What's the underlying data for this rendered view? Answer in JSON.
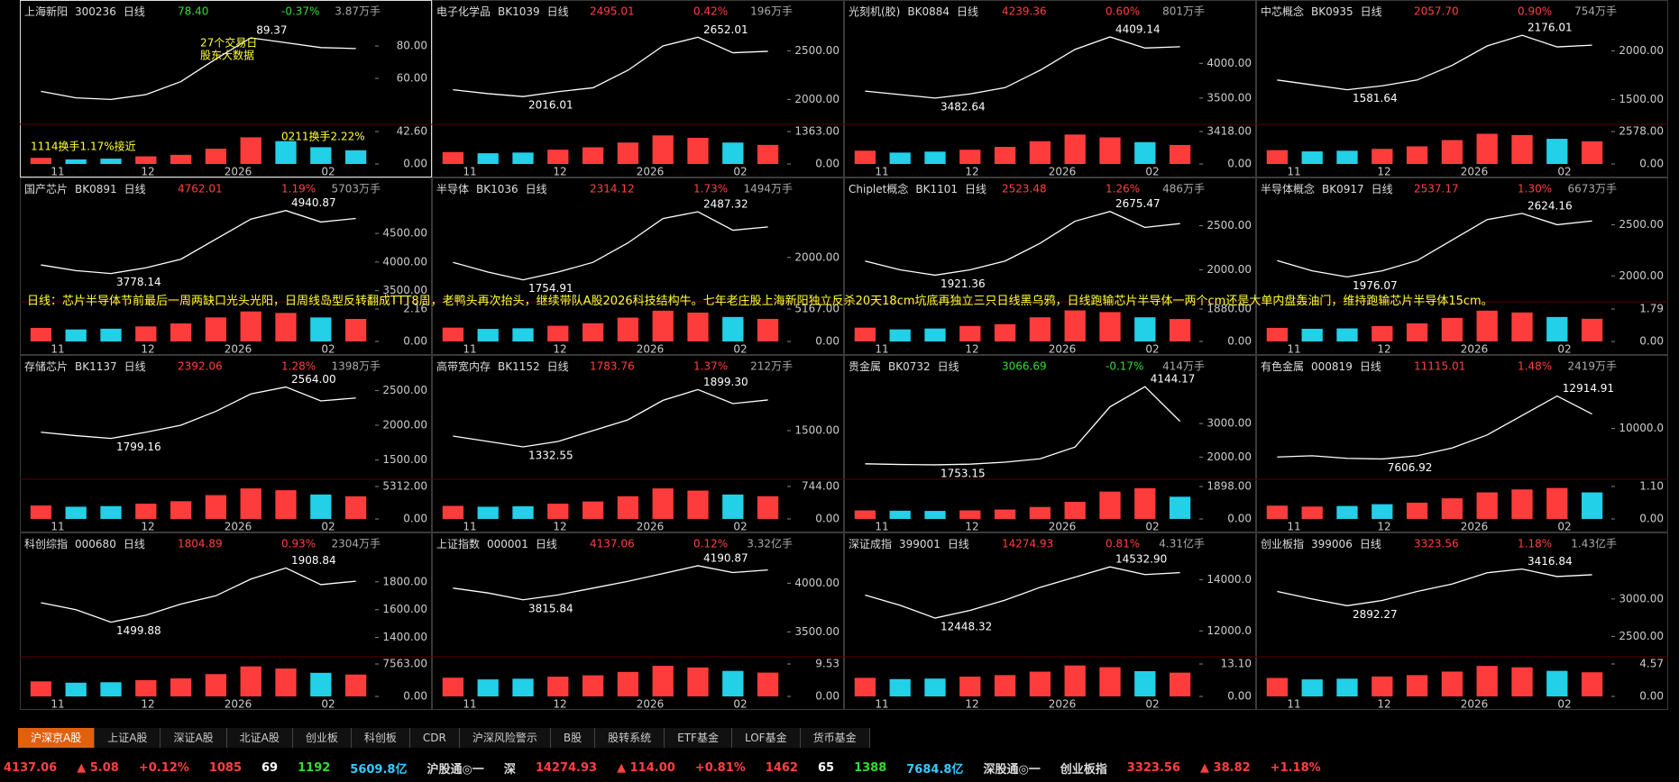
{
  "months": [
    "11",
    "12",
    "2026",
    "02"
  ],
  "annotation": "日线：芯片半导体节前最后一周两缺口光头光阳，日周线岛型反转翻成TTT8周，老鸭头再次抬头，继续带队A股2026科技结构牛。七年老庄股上海新阳独立反杀20天18cm坑底再独立三只日线黑乌鸦，日线跑输芯片半导体一两个cm还是大单内盘轰油门，维持跑输芯片半导体15cm。",
  "panels": [
    {
      "name": "上海新阳",
      "code": "300236",
      "period": "日线",
      "price": "78.40",
      "change": "-0.37%",
      "vol": "3.87万手",
      "high": "89.37",
      "low": "",
      "ylim": [
        35,
        95
      ],
      "yticks": [
        {
          "value": 80,
          "label": "80.00"
        },
        {
          "value": 60,
          "label": "60.00"
        }
      ],
      "vlim": [
        0,
        42.6
      ],
      "vticks": [
        {
          "value": 42.6,
          "label": "42.60"
        },
        {
          "value": 0,
          "label": "0.00"
        }
      ],
      "close": [
        52,
        48,
        47,
        50,
        58,
        72,
        85,
        82,
        79,
        78.4
      ],
      "volume": [
        8,
        6,
        7,
        10,
        12,
        20,
        35,
        30,
        22,
        18
      ],
      "notes": [
        "27个交易日",
        "股东大数据",
        "1114换手1.17%接近",
        "0211换手2.22%"
      ]
    },
    {
      "name": "电子化学品",
      "code": "BK1039",
      "period": "日线",
      "price": "2495.01",
      "change": "0.42%",
      "vol": "196万手",
      "high": "2652.01",
      "low": "2016.01",
      "ylim": [
        1800,
        2800
      ],
      "yticks": [
        {
          "value": 2500,
          "label": "2500.00"
        },
        {
          "value": 2000,
          "label": "2000.00"
        }
      ],
      "vlim": [
        0,
        1363
      ],
      "vticks": [
        {
          "value": 1363,
          "label": "1363.00"
        },
        {
          "value": 0,
          "label": "0.00"
        }
      ],
      "close": [
        2100,
        2060,
        2030,
        2080,
        2120,
        2300,
        2550,
        2640,
        2480,
        2495
      ],
      "volume": [
        500,
        450,
        480,
        600,
        700,
        900,
        1200,
        1100,
        900,
        800
      ]
    },
    {
      "name": "光刻机(胶)",
      "code": "BK0884",
      "period": "日线",
      "price": "4239.36",
      "change": "0.60%",
      "vol": "801万手",
      "high": "4409.14",
      "low": "3482.64",
      "ylim": [
        3200,
        4600
      ],
      "yticks": [
        {
          "value": 4000,
          "label": "4000.00"
        },
        {
          "value": 3500,
          "label": "3500.00"
        }
      ],
      "vlim": [
        0,
        3418
      ],
      "vticks": [
        {
          "value": 3418,
          "label": "3418.00"
        },
        {
          "value": 0,
          "label": "0.00"
        }
      ],
      "close": [
        3600,
        3550,
        3500,
        3560,
        3650,
        3900,
        4200,
        4380,
        4220,
        4239
      ],
      "volume": [
        1400,
        1200,
        1300,
        1500,
        1800,
        2400,
        3100,
        2800,
        2300,
        2000
      ]
    },
    {
      "name": "中芯概念",
      "code": "BK0935",
      "period": "日线",
      "price": "2057.70",
      "change": "0.90%",
      "vol": "754万手",
      "high": "2176.01",
      "low": "1581.64",
      "ylim": [
        1300,
        2300
      ],
      "yticks": [
        {
          "value": 2000,
          "label": "2000.00"
        },
        {
          "value": 1500,
          "label": "1500.00"
        }
      ],
      "vlim": [
        0,
        2578
      ],
      "vticks": [
        {
          "value": 2578,
          "label": "2578.00"
        },
        {
          "value": 0,
          "label": "0.00"
        }
      ],
      "close": [
        1700,
        1650,
        1600,
        1640,
        1700,
        1850,
        2050,
        2160,
        2040,
        2058
      ],
      "volume": [
        1100,
        1000,
        1050,
        1200,
        1400,
        1900,
        2400,
        2300,
        2000,
        1800
      ]
    },
    {
      "name": "国产芯片",
      "code": "BK0891",
      "period": "日线",
      "price": "4762.01",
      "change": "1.19%",
      "vol": "5703万手",
      "high": "4940.87",
      "low": "3778.14",
      "ylim": [
        3400,
        5100
      ],
      "yticks": [
        {
          "value": 4500,
          "label": "4500.00"
        },
        {
          "value": 4000,
          "label": "4000.00"
        },
        {
          "value": 3500,
          "label": "3500.00"
        }
      ],
      "vlim": [
        0,
        2.16
      ],
      "vticks": [
        {
          "value": 2.16,
          "label": "2.16"
        },
        {
          "value": 0,
          "label": "0.00"
        }
      ],
      "close": [
        3950,
        3850,
        3800,
        3900,
        4050,
        4400,
        4750,
        4900,
        4700,
        4762
      ],
      "volume": [
        0.9,
        0.8,
        0.85,
        1.0,
        1.2,
        1.6,
        2.0,
        1.9,
        1.6,
        1.5
      ]
    },
    {
      "name": "半导体",
      "code": "BK1036",
      "period": "日线",
      "price": "2314.12",
      "change": "1.73%",
      "vol": "1494万手",
      "high": "2487.32",
      "low": "1754.91",
      "ylim": [
        1600,
        2600
      ],
      "yticks": [
        {
          "value": 2000,
          "label": "2000.00"
        }
      ],
      "vlim": [
        0,
        5167
      ],
      "vticks": [
        {
          "value": 5167,
          "label": "5167.00"
        },
        {
          "value": 0,
          "label": "0.00"
        }
      ],
      "close": [
        1950,
        1850,
        1770,
        1850,
        1950,
        2150,
        2400,
        2470,
        2280,
        2314
      ],
      "volume": [
        2200,
        2000,
        2100,
        2500,
        2900,
        3800,
        4900,
        4600,
        3900,
        3600
      ]
    },
    {
      "name": "Chiplet概念",
      "code": "BK1101",
      "period": "日线",
      "price": "2523.48",
      "change": "1.26%",
      "vol": "486万手",
      "high": "2675.47",
      "low": "1921.36",
      "ylim": [
        1700,
        2800
      ],
      "yticks": [
        {
          "value": 2500,
          "label": "2500.00"
        },
        {
          "value": 2000,
          "label": "2000.00"
        }
      ],
      "vlim": [
        0,
        1880
      ],
      "vticks": [
        {
          "value": 1880,
          "label": "1880.00"
        },
        {
          "value": 0,
          "label": "0.00"
        }
      ],
      "close": [
        2100,
        2000,
        1940,
        2000,
        2100,
        2300,
        2550,
        2660,
        2480,
        2523
      ],
      "volume": [
        800,
        700,
        750,
        900,
        1000,
        1400,
        1800,
        1700,
        1400,
        1300
      ]
    },
    {
      "name": "半导体概念",
      "code": "BK0917",
      "period": "日线",
      "price": "2537.17",
      "change": "1.30%",
      "vol": "6673万手",
      "high": "2624.16",
      "low": "1976.07",
      "ylim": [
        1800,
        2750
      ],
      "yticks": [
        {
          "value": 2500,
          "label": "2500.00"
        },
        {
          "value": 2000,
          "label": "2000.00"
        }
      ],
      "vlim": [
        0,
        1.79
      ],
      "vticks": [
        {
          "value": 1.79,
          "label": "1.79"
        },
        {
          "value": 0,
          "label": "0.00"
        }
      ],
      "close": [
        2150,
        2050,
        1990,
        2050,
        2150,
        2350,
        2550,
        2610,
        2500,
        2537
      ],
      "volume": [
        0.75,
        0.7,
        0.72,
        0.85,
        1.0,
        1.3,
        1.7,
        1.6,
        1.35,
        1.25
      ]
    },
    {
      "name": "存储芯片",
      "code": "BK1137",
      "period": "日线",
      "price": "2392.06",
      "change": "1.28%",
      "vol": "1398万手",
      "high": "2564.00",
      "low": "1799.16",
      "ylim": [
        1300,
        2700
      ],
      "yticks": [
        {
          "value": 2500,
          "label": "2500.00"
        },
        {
          "value": 2000,
          "label": "2000.00"
        },
        {
          "value": 1500,
          "label": "1500.00"
        }
      ],
      "vlim": [
        0,
        5312
      ],
      "vticks": [
        {
          "value": 5312,
          "label": "5312.00"
        },
        {
          "value": 0,
          "label": "0.00"
        }
      ],
      "close": [
        1900,
        1850,
        1810,
        1900,
        2000,
        2200,
        2450,
        2550,
        2350,
        2392
      ],
      "volume": [
        2200,
        2000,
        2100,
        2500,
        2900,
        3900,
        5000,
        4700,
        4000,
        3700
      ]
    },
    {
      "name": "高带宽内存",
      "code": "BK1152",
      "period": "日线",
      "price": "1783.76",
      "change": "1.37%",
      "vol": "212万手",
      "high": "1899.30",
      "low": "1332.55",
      "ylim": [
        1100,
        2000
      ],
      "yticks": [
        {
          "value": 1500,
          "label": "1500.00"
        }
      ],
      "vlim": [
        0,
        744
      ],
      "vticks": [
        {
          "value": 744,
          "label": "744.00"
        },
        {
          "value": 0,
          "label": "0.00"
        }
      ],
      "close": [
        1450,
        1400,
        1350,
        1400,
        1500,
        1600,
        1780,
        1880,
        1750,
        1784
      ],
      "volume": [
        300,
        280,
        290,
        350,
        400,
        520,
        700,
        650,
        560,
        520
      ]
    },
    {
      "name": "贵金属",
      "code": "BK0732",
      "period": "日线",
      "price": "3066.69",
      "change": "-0.17%",
      "vol": "414万手",
      "high": "4144.17",
      "low": "1753.15",
      "ylim": [
        1500,
        4400
      ],
      "yticks": [
        {
          "value": 3000,
          "label": "3000.00"
        },
        {
          "value": 2000,
          "label": "2000.00"
        }
      ],
      "vlim": [
        0,
        1898
      ],
      "vticks": [
        {
          "value": 1898,
          "label": "1898.00"
        },
        {
          "value": 0,
          "label": "0.00"
        }
      ],
      "close": [
        1800,
        1780,
        1770,
        1790,
        1850,
        1950,
        2300,
        3500,
        4100,
        3067
      ],
      "volume": [
        500,
        480,
        470,
        500,
        550,
        700,
        1000,
        1600,
        1800,
        1300
      ]
    },
    {
      "name": "有色金属",
      "code": "000819",
      "period": "日线",
      "price": "11115.01",
      "change": "1.48%",
      "vol": "2419万手",
      "high": "12914.91",
      "low": "7606.92",
      "ylim": [
        6500,
        14000
      ],
      "yticks": [
        {
          "value": 10000,
          "label": "10000.0"
        }
      ],
      "vlim": [
        0,
        1.1
      ],
      "vticks": [
        {
          "value": 1.1,
          "label": "1.10"
        },
        {
          "value": 0,
          "label": "0.00"
        }
      ],
      "close": [
        7800,
        7900,
        7700,
        7650,
        7900,
        8500,
        9500,
        11000,
        12500,
        11115
      ],
      "volume": [
        0.45,
        0.42,
        0.44,
        0.5,
        0.55,
        0.7,
        0.9,
        1.0,
        1.05,
        0.9
      ]
    },
    {
      "name": "科创综指",
      "code": "000680",
      "period": "日线",
      "price": "1804.89",
      "change": "0.93%",
      "vol": "2304万手",
      "high": "1908.84",
      "low": "1499.88",
      "ylim": [
        1300,
        2000
      ],
      "yticks": [
        {
          "value": 1800,
          "label": "1800.00"
        },
        {
          "value": 1600,
          "label": "1600.00"
        },
        {
          "value": 1400,
          "label": "1400.00"
        }
      ],
      "vlim": [
        0,
        7563
      ],
      "vticks": [
        {
          "value": 7563,
          "label": "7563.00"
        },
        {
          "value": 0,
          "label": "0.00"
        }
      ],
      "close": [
        1650,
        1600,
        1510,
        1560,
        1640,
        1700,
        1820,
        1900,
        1780,
        1805
      ],
      "volume": [
        3500,
        3200,
        3300,
        3800,
        4200,
        5200,
        7000,
        6500,
        5500,
        5100
      ]
    },
    {
      "name": "上证指数",
      "code": "000001",
      "period": "日线",
      "price": "4137.06",
      "change": "0.12%",
      "vol": "3.32亿手",
      "high": "4190.87",
      "low": "3815.84",
      "ylim": [
        3300,
        4300
      ],
      "yticks": [
        {
          "value": 4000,
          "label": "4000.00"
        },
        {
          "value": 3500,
          "label": "3500.00"
        }
      ],
      "vlim": [
        0,
        9.53
      ],
      "vticks": [
        {
          "value": 9.53,
          "label": "9.53"
        },
        {
          "value": 0,
          "label": "0.00"
        }
      ],
      "close": [
        3950,
        3900,
        3830,
        3880,
        3950,
        4020,
        4100,
        4180,
        4110,
        4137
      ],
      "volume": [
        5.5,
        5.0,
        5.2,
        5.8,
        6.2,
        7.2,
        9.0,
        8.5,
        7.5,
        7.0
      ]
    },
    {
      "name": "深证成指",
      "code": "399001",
      "period": "日线",
      "price": "14274.93",
      "change": "0.81%",
      "vol": "4.31亿手",
      "high": "14532.90",
      "low": "12448.32",
      "ylim": [
        11200,
        15000
      ],
      "yticks": [
        {
          "value": 14000,
          "label": "14000.0"
        },
        {
          "value": 12000,
          "label": "12000.0"
        }
      ],
      "vlim": [
        0,
        13.1
      ],
      "vticks": [
        {
          "value": 13.1,
          "label": "13.10"
        },
        {
          "value": 0,
          "label": "0.00"
        }
      ],
      "close": [
        13400,
        13000,
        12500,
        12800,
        13200,
        13700,
        14100,
        14500,
        14200,
        14275
      ],
      "volume": [
        7.5,
        7.0,
        7.2,
        8.0,
        8.6,
        10.0,
        12.5,
        11.8,
        10.2,
        9.6
      ]
    },
    {
      "name": "创业板指",
      "code": "399006",
      "period": "日线",
      "price": "3323.56",
      "change": "1.18%",
      "vol": "1.43亿手",
      "high": "3416.84",
      "low": "2892.27",
      "ylim": [
        2300,
        3600
      ],
      "yticks": [
        {
          "value": 3000,
          "label": "3000.00"
        },
        {
          "value": 2500,
          "label": "2500.00"
        }
      ],
      "vlim": [
        0,
        4.57
      ],
      "vticks": [
        {
          "value": 4.57,
          "label": "4.57"
        },
        {
          "value": 0,
          "label": "0.00"
        }
      ],
      "close": [
        3100,
        3000,
        2910,
        2980,
        3100,
        3200,
        3350,
        3400,
        3300,
        3324
      ],
      "volume": [
        2.6,
        2.4,
        2.5,
        2.8,
        3.0,
        3.5,
        4.3,
        4.1,
        3.6,
        3.4
      ]
    }
  ],
  "tabs": [
    "沪深京A股",
    "上证A股",
    "深证A股",
    "北证A股",
    "创业板",
    "科创板",
    "CDR",
    "沪深风险警示",
    "B股",
    "股转系统",
    "ETF基金",
    "LOF基金",
    "货币基金"
  ],
  "status": [
    {
      "text": "4137.06",
      "color": "#ff4040"
    },
    {
      "text": "▲ 5.08",
      "color": "#ff4040"
    },
    {
      "text": "+0.12%",
      "color": "#ff4040"
    },
    {
      "text": "1085",
      "color": "#ff4040"
    },
    {
      "text": "69",
      "color": "#ffffff"
    },
    {
      "text": "1192",
      "color": "#33dd33"
    },
    {
      "text": "5609.8亿",
      "color": "#33ccff"
    },
    {
      "text": "沪股通◎一",
      "color": "#dddddd"
    },
    {
      "text": "深",
      "color": "#dddddd"
    },
    {
      "text": "14274.93",
      "color": "#ff4040"
    },
    {
      "text": "▲ 114.00",
      "color": "#ff4040"
    },
    {
      "text": "+0.81%",
      "color": "#ff4040"
    },
    {
      "text": "1462",
      "color": "#ff4040"
    },
    {
      "text": "65",
      "color": "#ffffff"
    },
    {
      "text": "1388",
      "color": "#33dd33"
    },
    {
      "text": "7684.8亿",
      "color": "#33ccff"
    },
    {
      "text": "深股通◎一",
      "color": "#dddddd"
    },
    {
      "text": "创业板指",
      "color": "#dddddd"
    },
    {
      "text": "3323.56",
      "color": "#ff4040"
    },
    {
      "text": "▲ 38.82",
      "color": "#ff4040"
    },
    {
      "text": "+1.18%",
      "color": "#ff4040"
    }
  ]
}
